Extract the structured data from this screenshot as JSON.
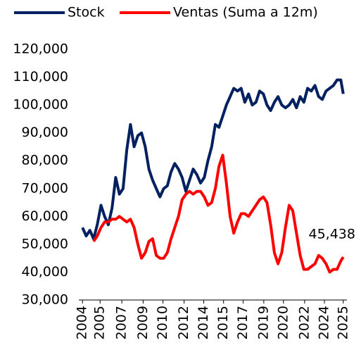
{
  "chart_data": {
    "type": "line",
    "x": [
      2004.0,
      2004.3,
      2004.6,
      2004.9,
      2005.2,
      2005.5,
      2005.8,
      2006.1,
      2006.4,
      2006.7,
      2007.0,
      2007.3,
      2007.6,
      2007.9,
      2008.2,
      2008.5,
      2008.8,
      2009.1,
      2009.4,
      2009.7,
      2010.0,
      2010.3,
      2010.6,
      2010.9,
      2011.2,
      2011.5,
      2011.8,
      2012.1,
      2012.4,
      2012.7,
      2013.0,
      2013.3,
      2013.6,
      2013.9,
      2014.2,
      2014.5,
      2014.8,
      2015.1,
      2015.4,
      2015.7,
      2016.0,
      2016.3,
      2016.6,
      2016.9,
      2017.2,
      2017.5,
      2017.8,
      2018.1,
      2018.4,
      2018.7,
      2019.0,
      2019.3,
      2019.6,
      2019.9,
      2020.2,
      2020.5,
      2020.8,
      2021.1,
      2021.4,
      2021.7,
      2022.0,
      2022.3,
      2022.6,
      2022.9,
      2023.2,
      2023.5,
      2023.8,
      2024.1,
      2024.4,
      2024.7,
      2025.0,
      2025.2
    ],
    "series": [
      {
        "name": "Stock",
        "color": "#002060",
        "values": [
          56000,
          53000,
          55000,
          52000,
          57000,
          64000,
          60000,
          57000,
          63000,
          74000,
          68000,
          70000,
          84000,
          93000,
          85000,
          89000,
          90000,
          85000,
          77000,
          73000,
          70000,
          67000,
          70000,
          71000,
          76000,
          79000,
          77000,
          74000,
          69000,
          73000,
          77000,
          75000,
          72000,
          74000,
          80000,
          85000,
          93000,
          92000,
          96000,
          100000,
          103000,
          106000,
          105000,
          106000,
          101000,
          104000,
          100000,
          101000,
          105000,
          104000,
          100000,
          98000,
          101000,
          103000,
          100000,
          99000,
          100000,
          102000,
          99000,
          103000,
          101000,
          106000,
          105000,
          107000,
          103000,
          102000,
          105000,
          106000,
          107000,
          109000,
          109000,
          104000
        ]
      },
      {
        "name": "Ventas (Suma a 12m)",
        "color": "#ff0000",
        "values": [
          null,
          null,
          null,
          51000,
          53000,
          56000,
          58000,
          58000,
          59000,
          59000,
          60000,
          59000,
          58000,
          59000,
          56000,
          50000,
          45000,
          47000,
          51000,
          52000,
          46000,
          45000,
          45000,
          47000,
          52000,
          56000,
          60000,
          66000,
          68000,
          69000,
          68000,
          69000,
          69000,
          67000,
          64000,
          65000,
          70000,
          78000,
          82000,
          72000,
          60000,
          54000,
          58000,
          61000,
          61000,
          60000,
          62000,
          64000,
          66000,
          67000,
          65000,
          57000,
          47000,
          43000,
          47000,
          56000,
          64000,
          62000,
          54000,
          46000,
          41000,
          41000,
          42000,
          43000,
          46000,
          45000,
          43000,
          40000,
          41000,
          41000,
          44000,
          45438
        ],
        "value_labels": [
          null,
          null,
          null,
          null,
          null,
          null,
          null,
          null,
          null,
          null,
          null,
          null,
          null,
          null,
          null,
          null,
          null,
          null,
          null,
          null,
          null,
          null,
          null,
          null,
          null,
          null,
          null,
          null,
          null,
          null,
          null,
          null,
          null,
          null,
          null,
          null,
          null,
          null,
          null,
          null,
          null,
          null,
          null,
          null,
          null,
          null,
          null,
          null,
          null,
          null,
          null,
          null,
          null,
          null,
          null,
          null,
          null,
          null,
          null,
          null,
          null,
          null,
          null,
          null,
          null,
          null,
          null,
          null,
          null,
          null,
          null,
          "45,438"
        ]
      }
    ],
    "xlim": [
      2003.7,
      2025.5
    ],
    "xticks": [
      {
        "value": 2004.0,
        "label": "2004"
      },
      {
        "value": 2005.43,
        "label": "2005"
      },
      {
        "value": 2007.2,
        "label": "2007"
      },
      {
        "value": 2008.93,
        "label": "2009"
      },
      {
        "value": 2010.54,
        "label": "2010"
      },
      {
        "value": 2012.26,
        "label": "2012"
      },
      {
        "value": 2013.86,
        "label": "2014"
      },
      {
        "value": 2015.47,
        "label": "2015"
      },
      {
        "value": 2017.06,
        "label": "2017"
      },
      {
        "value": 2018.74,
        "label": "2019"
      },
      {
        "value": 2020.34,
        "label": "2020"
      },
      {
        "value": 2022.06,
        "label": "2022"
      },
      {
        "value": 2023.67,
        "label": "2024"
      },
      {
        "value": 2025.2,
        "label": "2025"
      }
    ],
    "ylim": [
      30000,
      120000
    ],
    "yticks": [
      {
        "value": 30000,
        "label": "30,000"
      },
      {
        "value": 40000,
        "label": "40,000"
      },
      {
        "value": 50000,
        "label": "50,000"
      },
      {
        "value": 60000,
        "label": "60,000"
      },
      {
        "value": 70000,
        "label": "70,000"
      },
      {
        "value": 80000,
        "label": "80,000"
      },
      {
        "value": 90000,
        "label": "90,000"
      },
      {
        "value": 100000,
        "label": "100,000"
      },
      {
        "value": 110000,
        "label": "110,000"
      },
      {
        "value": 120000,
        "label": "120,000"
      }
    ],
    "grid": false,
    "legend": "top"
  }
}
